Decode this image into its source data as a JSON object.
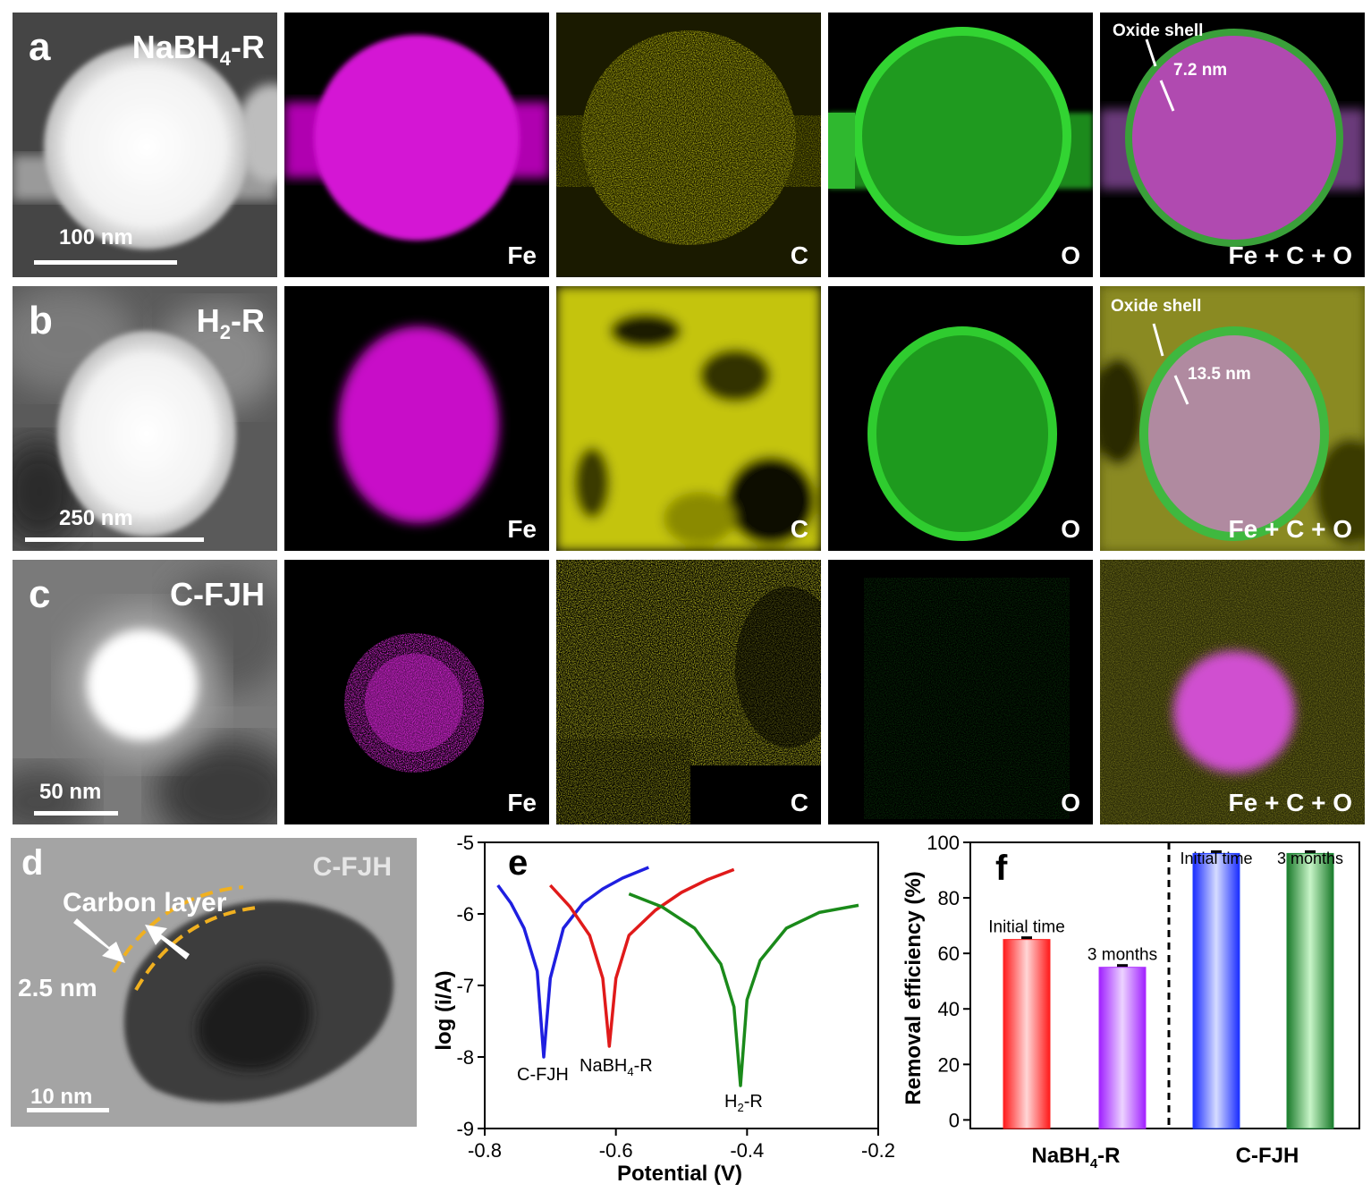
{
  "rows": [
    {
      "letter": "a",
      "sample_main": "NaBH",
      "sample_sub": "4",
      "sample_tail": "-R",
      "scale": "100 nm",
      "elements": [
        "Fe",
        "C",
        "O",
        "Fe + C + O"
      ],
      "oxide_label": "Oxide shell",
      "thickness": "7.2 nm"
    },
    {
      "letter": "b",
      "sample_main": "H",
      "sample_sub": "2",
      "sample_tail": "-R",
      "scale": "250 nm",
      "elements": [
        "Fe",
        "C",
        "O",
        "Fe + C + O"
      ],
      "oxide_label": "Oxide shell",
      "thickness": "13.5 nm"
    },
    {
      "letter": "c",
      "sample_main": "C-FJH",
      "sample_sub": "",
      "sample_tail": "",
      "scale": "50 nm",
      "elements": [
        "Fe",
        "C",
        "O",
        "Fe + C + O"
      ]
    }
  ],
  "panel_d": {
    "letter": "d",
    "sample": "C-FJH",
    "carbon_label": "Carbon layer",
    "thickness": "2.5 nm",
    "scale": "10 nm"
  },
  "chart_data": [
    {
      "panel": "e",
      "type": "line",
      "xlabel": "Potential (V)",
      "ylabel": "log (i/A)",
      "xlim": [
        -0.8,
        -0.2
      ],
      "ylim": [
        -9,
        -5
      ],
      "xticks": [
        "-0.8",
        "-0.6",
        "-0.4",
        "-0.2"
      ],
      "yticks": [
        "-5",
        "-6",
        "-7",
        "-8",
        "-9"
      ],
      "series": [
        {
          "name": "C-FJH",
          "color": "#1f1fe0",
          "corrosion_potential": -0.71,
          "min_log_i": -8.0,
          "x": [
            -0.78,
            -0.76,
            -0.74,
            -0.72,
            -0.71,
            -0.7,
            -0.68,
            -0.65,
            -0.62,
            -0.59,
            -0.55
          ],
          "y": [
            -5.6,
            -5.85,
            -6.2,
            -6.8,
            -8.0,
            -6.9,
            -6.2,
            -5.85,
            -5.65,
            -5.5,
            -5.35
          ]
        },
        {
          "name": "NaBH4-R",
          "color": "#e01a1a",
          "corrosion_potential": -0.61,
          "min_log_i": -7.85,
          "x": [
            -0.7,
            -0.67,
            -0.64,
            -0.62,
            -0.61,
            -0.6,
            -0.58,
            -0.54,
            -0.5,
            -0.46,
            -0.42
          ],
          "y": [
            -5.6,
            -5.9,
            -6.3,
            -6.9,
            -7.85,
            -6.9,
            -6.3,
            -5.95,
            -5.7,
            -5.52,
            -5.38
          ]
        },
        {
          "name": "H2-R",
          "color": "#1a8a1a",
          "corrosion_potential": -0.41,
          "min_log_i": -8.4,
          "x": [
            -0.58,
            -0.53,
            -0.48,
            -0.44,
            -0.42,
            -0.41,
            -0.4,
            -0.38,
            -0.34,
            -0.29,
            -0.23
          ],
          "y": [
            -5.72,
            -5.9,
            -6.2,
            -6.7,
            -7.3,
            -8.4,
            -7.2,
            -6.65,
            -6.2,
            -5.98,
            -5.88
          ]
        }
      ],
      "curve_labels": {
        "cfjh": "C-FJH",
        "nabh_main": "NaBH",
        "nabh_sub": "4",
        "nabh_tail": "-R",
        "h2_main": "H",
        "h2_sub": "2",
        "h2_tail": "-R"
      }
    },
    {
      "panel": "f",
      "type": "bar",
      "ylabel": "Removal efficiency (%)",
      "ylim": [
        0,
        100
      ],
      "yticks": [
        "0",
        "20",
        "40",
        "60",
        "80",
        "100"
      ],
      "groups": [
        {
          "name_main": "NaBH",
          "name_sub": "4",
          "name_tail": "-R",
          "bars": [
            {
              "label": "Initial time",
              "value": 65,
              "color": "#ff2020"
            },
            {
              "label": "3 months",
              "value": 55,
              "color": "#b030ff"
            }
          ]
        },
        {
          "name_main": "C-FJH",
          "name_sub": "",
          "name_tail": "",
          "bars": [
            {
              "label": "Initial time",
              "value": 96,
              "color": "#2040ff"
            },
            {
              "label": "3 months",
              "value": 96,
              "color": "#1f8a3a"
            }
          ]
        }
      ]
    }
  ]
}
